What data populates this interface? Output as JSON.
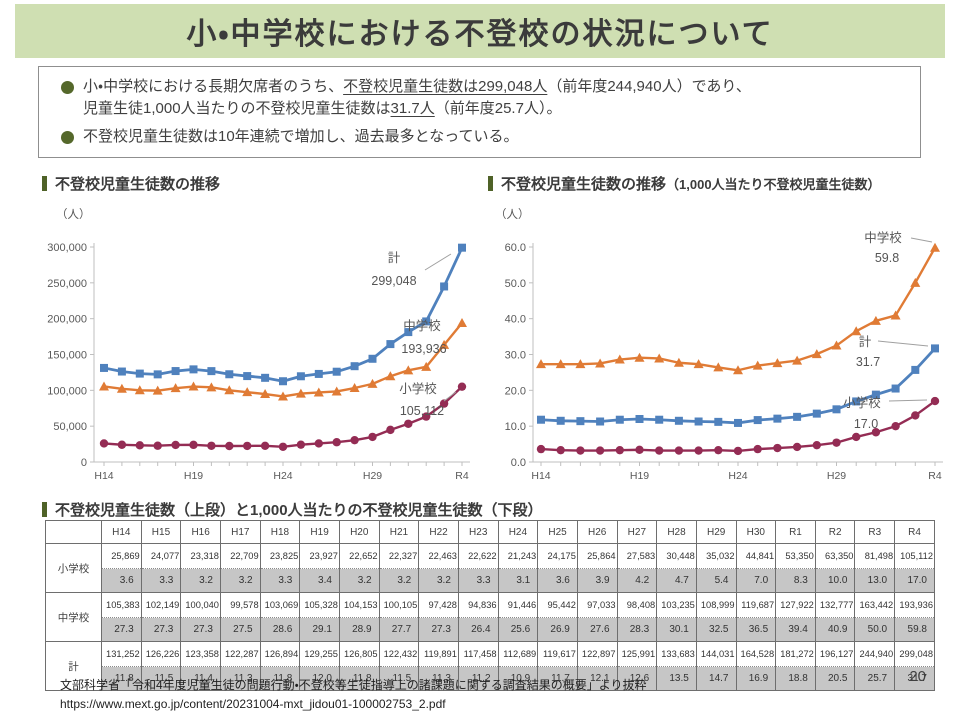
{
  "slide": {
    "title": "小・中学校における不登校の状況について",
    "page_number": "20",
    "summary": {
      "b1_pre": "小・中学校における長期欠席者のうち、",
      "b1_u1": "不登校児童生徒数は299,048人",
      "b1_mid": "（前年度244,940人）であり、",
      "b1_l2pre": "児童生徒1,000人当たりの不登校児童生徒数は",
      "b1_u2": "31.7人",
      "b1_post": "（前年度25.7人）。",
      "b2": "不登校児童生徒数は10年連続で増加し、過去最多となっている。"
    },
    "headings": {
      "chart_left": "不登校児童生徒数の推移",
      "chart_right_main": "不登校児童生徒数の推移",
      "chart_right_sub": " （1,000人当たり不登校児童生徒数）",
      "table": "不登校児童生徒数（上段）と1,000人当たりの不登校児童生徒数（下段）"
    },
    "source_line1": "文部科学省「令和4年度児童生徒の問題行動・不登校等生徒指導上の諸課題に関する調査結果の概要」より抜粋",
    "source_line2": "https://www.mext.go.jp/content/20231004-mxt_jidou01-100002753_2.pdf"
  },
  "chart_data": [
    {
      "type": "line",
      "title": "不登校児童生徒数の推移",
      "unit": "（人）",
      "x": [
        "H14",
        "H15",
        "H16",
        "H17",
        "H18",
        "H19",
        "H20",
        "H21",
        "H22",
        "H23",
        "H24",
        "H25",
        "H26",
        "H27",
        "H28",
        "H29",
        "H30",
        "R1",
        "R2",
        "R3",
        "R4"
      ],
      "x_tick_labels": [
        "H14",
        "H19",
        "H24",
        "H29",
        "R4"
      ],
      "ylim": [
        0,
        300000
      ],
      "ytick_step": 50000,
      "grid": false,
      "legend": "end-labels",
      "series": [
        {
          "name": "計",
          "color": "#4f81bd",
          "marker": "square",
          "values": [
            131252,
            126226,
            123358,
            122287,
            126894,
            129255,
            126805,
            122432,
            119891,
            117458,
            112689,
            119617,
            122897,
            125991,
            133683,
            144031,
            164528,
            181272,
            196127,
            244940,
            299048
          ],
          "end_label": "299,048"
        },
        {
          "name": "中学校",
          "color": "#e07b35",
          "marker": "triangle",
          "values": [
            105383,
            102149,
            100040,
            99578,
            103069,
            105328,
            104153,
            100105,
            97428,
            94836,
            91446,
            95442,
            97033,
            98408,
            103235,
            108999,
            119687,
            127922,
            132777,
            163442,
            193936
          ],
          "end_label": "193,936"
        },
        {
          "name": "小学校",
          "color": "#942c54",
          "marker": "circle",
          "values": [
            25869,
            24077,
            23318,
            22709,
            23825,
            23927,
            22652,
            22327,
            22463,
            22622,
            21243,
            24175,
            25864,
            27583,
            30448,
            35032,
            44841,
            53350,
            63350,
            81498,
            105112
          ],
          "end_label": "105,112"
        }
      ]
    },
    {
      "type": "line",
      "title": "不登校児童生徒数の推移（1,000人当たり不登校児童生徒数）",
      "unit": "（人）",
      "x": [
        "H14",
        "H15",
        "H16",
        "H17",
        "H18",
        "H19",
        "H20",
        "H21",
        "H22",
        "H23",
        "H24",
        "H25",
        "H26",
        "H27",
        "H28",
        "H29",
        "H30",
        "R1",
        "R2",
        "R3",
        "R4"
      ],
      "x_tick_labels": [
        "H14",
        "H19",
        "H24",
        "H29",
        "R4"
      ],
      "ylim": [
        0,
        60
      ],
      "ytick_step": 10,
      "grid": false,
      "legend": "end-labels",
      "series": [
        {
          "name": "計",
          "color": "#4f81bd",
          "marker": "square",
          "values": [
            11.8,
            11.5,
            11.4,
            11.3,
            11.8,
            12.0,
            11.8,
            11.5,
            11.3,
            11.2,
            10.9,
            11.7,
            12.1,
            12.6,
            13.5,
            14.7,
            16.9,
            18.8,
            20.5,
            25.7,
            31.7
          ],
          "end_label": "31.7"
        },
        {
          "name": "中学校",
          "color": "#e07b35",
          "marker": "triangle",
          "values": [
            27.3,
            27.3,
            27.3,
            27.5,
            28.6,
            29.1,
            28.9,
            27.7,
            27.3,
            26.4,
            25.6,
            26.9,
            27.6,
            28.3,
            30.1,
            32.5,
            36.5,
            39.4,
            40.9,
            50.0,
            59.8
          ],
          "end_label": "59.8"
        },
        {
          "name": "小学校",
          "color": "#942c54",
          "marker": "circle",
          "values": [
            3.6,
            3.3,
            3.2,
            3.2,
            3.3,
            3.4,
            3.2,
            3.2,
            3.2,
            3.3,
            3.1,
            3.6,
            3.9,
            4.2,
            4.7,
            5.4,
            7.0,
            8.3,
            10.0,
            13.0,
            17.0
          ],
          "end_label": "17.0"
        }
      ]
    }
  ],
  "table": {
    "col_headers": [
      "H14",
      "H15",
      "H16",
      "H17",
      "H18",
      "H19",
      "H20",
      "H21",
      "H22",
      "H23",
      "H24",
      "H25",
      "H26",
      "H27",
      "H28",
      "H29",
      "H30",
      "R1",
      "R2",
      "R3",
      "R4"
    ],
    "rows": [
      {
        "label": "小学校",
        "counts": [
          "25,869",
          "24,077",
          "23,318",
          "22,709",
          "23,825",
          "23,927",
          "22,652",
          "22,327",
          "22,463",
          "22,622",
          "21,243",
          "24,175",
          "25,864",
          "27,583",
          "30,448",
          "35,032",
          "44,841",
          "53,350",
          "63,350",
          "81,498",
          "105,112"
        ],
        "rates": [
          "3.6",
          "3.3",
          "3.2",
          "3.2",
          "3.3",
          "3.4",
          "3.2",
          "3.2",
          "3.2",
          "3.3",
          "3.1",
          "3.6",
          "3.9",
          "4.2",
          "4.7",
          "5.4",
          "7.0",
          "8.3",
          "10.0",
          "13.0",
          "17.0"
        ]
      },
      {
        "label": "中学校",
        "counts": [
          "105,383",
          "102,149",
          "100,040",
          "99,578",
          "103,069",
          "105,328",
          "104,153",
          "100,105",
          "97,428",
          "94,836",
          "91,446",
          "95,442",
          "97,033",
          "98,408",
          "103,235",
          "108,999",
          "119,687",
          "127,922",
          "132,777",
          "163,442",
          "193,936"
        ],
        "rates": [
          "27.3",
          "27.3",
          "27.3",
          "27.5",
          "28.6",
          "29.1",
          "28.9",
          "27.7",
          "27.3",
          "26.4",
          "25.6",
          "26.9",
          "27.6",
          "28.3",
          "30.1",
          "32.5",
          "36.5",
          "39.4",
          "40.9",
          "50.0",
          "59.8"
        ]
      },
      {
        "label": "計",
        "counts": [
          "131,252",
          "126,226",
          "123,358",
          "122,287",
          "126,894",
          "129,255",
          "126,805",
          "122,432",
          "119,891",
          "117,458",
          "112,689",
          "119,617",
          "122,897",
          "125,991",
          "133,683",
          "144,031",
          "164,528",
          "181,272",
          "196,127",
          "244,940",
          "299,048"
        ],
        "rates": [
          "11.8",
          "11.5",
          "11.4",
          "11.3",
          "11.8",
          "12.0",
          "11.8",
          "11.5",
          "11.3",
          "11.2",
          "10.9",
          "11.7",
          "12.1",
          "12.6",
          "13.5",
          "14.7",
          "16.9",
          "18.8",
          "20.5",
          "25.7",
          "31.7"
        ]
      }
    ]
  }
}
